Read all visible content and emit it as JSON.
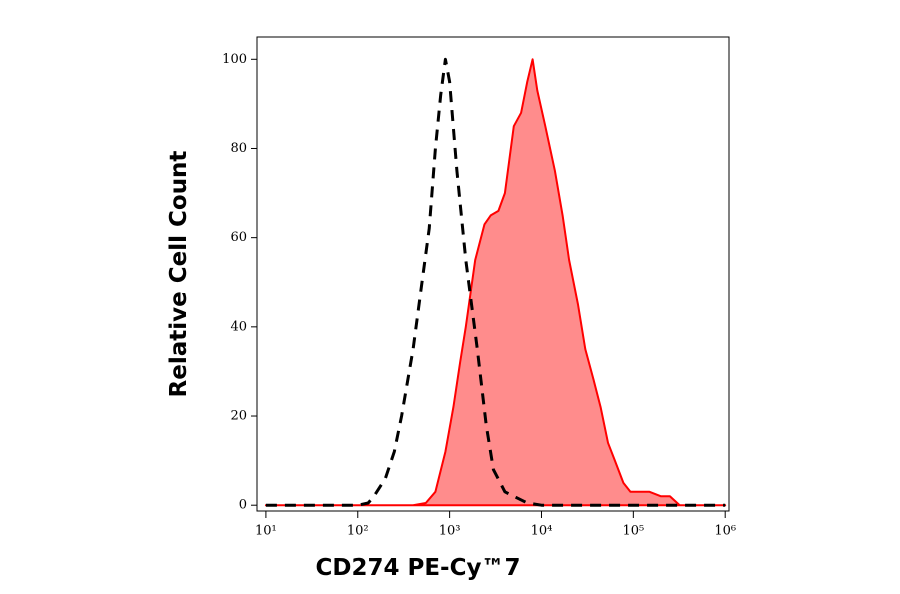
{
  "chart_data": {
    "type": "histogram-overlay",
    "x_label": "CD274 PE-Cy™7",
    "y_label": "Relative Cell Count",
    "xscale": "log",
    "xlim": [
      8,
      1100000
    ],
    "ylim": [
      -1.3,
      105
    ],
    "xticks": [
      {
        "value": 10,
        "label": "10¹"
      },
      {
        "value": 100,
        "label": "10²"
      },
      {
        "value": 1000,
        "label": "10³"
      },
      {
        "value": 10000,
        "label": "10⁴"
      },
      {
        "value": 100000,
        "label": "10⁵"
      },
      {
        "value": 1000000,
        "label": "10⁶"
      }
    ],
    "yticks": [
      0,
      20,
      40,
      60,
      80,
      100
    ],
    "series": [
      {
        "color": "#ff0000",
        "fill": "#ff8c8c",
        "style": "solid",
        "x": [
          10,
          400,
          550,
          700,
          900,
          1100,
          1300,
          1500,
          1900,
          2400,
          2800,
          3400,
          4000,
          5000,
          6000,
          7000,
          8000,
          9000,
          11000,
          14000,
          17000,
          20000,
          25000,
          30000,
          37000,
          44000,
          53000,
          63000,
          78000,
          93000,
          120000,
          150000,
          200000,
          250000,
          320000,
          1000000
        ],
        "values": [
          0,
          0,
          0.5,
          3,
          12,
          22,
          32,
          40,
          55,
          63,
          65,
          66,
          70,
          85,
          88,
          95,
          100,
          93,
          85,
          75,
          65,
          55,
          45,
          35,
          28,
          22,
          14,
          10,
          5,
          3,
          3,
          3,
          2,
          2,
          0,
          0
        ]
      },
      {
        "color": "#000000",
        "style": "dashed",
        "x": [
          10,
          100,
          130,
          150,
          200,
          250,
          300,
          400,
          500,
          600,
          700,
          800,
          900,
          1000,
          1200,
          1500,
          2000,
          2500,
          3000,
          4000,
          5000,
          7000,
          10000,
          1000000
        ],
        "values": [
          0,
          0,
          0.5,
          2,
          6,
          12,
          20,
          35,
          50,
          62,
          80,
          92,
          100,
          95,
          75,
          55,
          35,
          18,
          8,
          3,
          2,
          0.5,
          0,
          0
        ]
      }
    ]
  }
}
